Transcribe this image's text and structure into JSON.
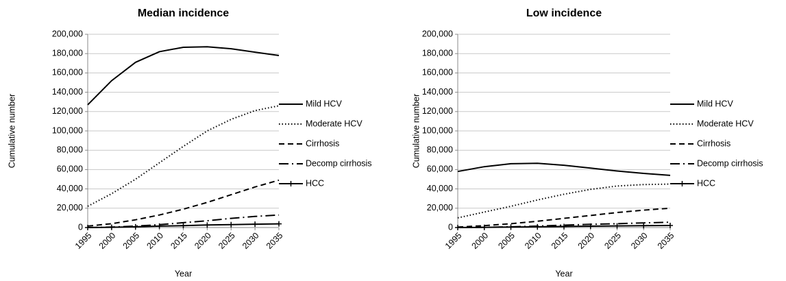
{
  "chart_data": [
    {
      "type": "line",
      "title": "Median incidence",
      "x_label": "Year",
      "y_label": "Cumulative number",
      "x": [
        1995,
        2000,
        2005,
        2010,
        2015,
        2020,
        2025,
        2030,
        2035
      ],
      "xlim": [
        1995,
        2035
      ],
      "xticks": [
        1995,
        2000,
        2005,
        2010,
        2015,
        2020,
        2025,
        2030,
        2035
      ],
      "ylim": [
        0,
        200000
      ],
      "yticks": [
        0,
        {
          "value": 20000,
          "label": "20,000"
        },
        {
          "value": 40000,
          "label": "40,000"
        },
        {
          "value": 60000,
          "label": "60,000"
        },
        {
          "value": 80000,
          "label": "80,000"
        },
        {
          "value": 100000,
          "label": "100,000"
        },
        {
          "value": 120000,
          "label": "120,000"
        },
        {
          "value": 140000,
          "label": "140,000"
        },
        {
          "value": 160000,
          "label": "160,000"
        },
        {
          "value": 180000,
          "label": "180,000"
        },
        {
          "value": 200000,
          "label": "200,000"
        }
      ],
      "grid": true,
      "legend": "right",
      "series": [
        {
          "name": "Mild HCV",
          "color": "#000000",
          "dash": "solid",
          "values": [
            127000,
            152000,
            171000,
            182000,
            186500,
            187000,
            185000,
            181500,
            178000
          ]
        },
        {
          "name": "Moderate HCV",
          "color": "#000000",
          "dash": "dotted",
          "values": [
            22000,
            35000,
            50000,
            67000,
            84000,
            100000,
            112000,
            121000,
            126000
          ]
        },
        {
          "name": "Cirrhosis",
          "color": "#000000",
          "dash": "dashed",
          "values": [
            1500,
            4000,
            8000,
            13000,
            19000,
            26000,
            34000,
            42000,
            49000
          ]
        },
        {
          "name": "Decomp cirrhosis",
          "color": "#000000",
          "dash": "dashdot",
          "values": [
            0,
            500,
            1500,
            3000,
            5000,
            7000,
            9500,
            11500,
            13000
          ]
        },
        {
          "name": "HCC",
          "color": "#000000",
          "dash": "solid",
          "marker": "plus",
          "values": [
            0,
            300,
            800,
            1500,
            2000,
            2600,
            3000,
            3500,
            3800
          ]
        }
      ]
    },
    {
      "type": "line",
      "title": "Low incidence",
      "x_label": "Year",
      "y_label": "Cumulative number",
      "x": [
        1995,
        2000,
        2005,
        2010,
        2015,
        2020,
        2025,
        2030,
        2035
      ],
      "xlim": [
        1995,
        2035
      ],
      "xticks": [
        1995,
        2000,
        2005,
        2010,
        2015,
        2020,
        2025,
        2030,
        2035
      ],
      "ylim": [
        0,
        200000
      ],
      "yticks": [
        0,
        {
          "value": 20000,
          "label": "20,000"
        },
        {
          "value": 40000,
          "label": "40,000"
        },
        {
          "value": 60000,
          "label": "60,000"
        },
        {
          "value": 80000,
          "label": "80,000"
        },
        {
          "value": 100000,
          "label": "100,000"
        },
        {
          "value": 120000,
          "label": "120,000"
        },
        {
          "value": 140000,
          "label": "140,000"
        },
        {
          "value": 160000,
          "label": "160,000"
        },
        {
          "value": 180000,
          "label": "180,000"
        },
        {
          "value": 200000,
          "label": "200,000"
        }
      ],
      "grid": true,
      "legend": "right",
      "series": [
        {
          "name": "Mild HCV",
          "color": "#000000",
          "dash": "solid",
          "values": [
            58000,
            63000,
            66000,
            66500,
            64500,
            61500,
            58500,
            56000,
            54000
          ]
        },
        {
          "name": "Moderate HCV",
          "color": "#000000",
          "dash": "dotted",
          "values": [
            10000,
            16000,
            22000,
            28500,
            34500,
            39500,
            43000,
            44500,
            45000
          ]
        },
        {
          "name": "Cirrhosis",
          "color": "#000000",
          "dash": "dashed",
          "values": [
            500,
            2000,
            4000,
            6500,
            9500,
            12500,
            15500,
            18000,
            20000
          ]
        },
        {
          "name": "Decomp cirrhosis",
          "color": "#000000",
          "dash": "dashdot",
          "values": [
            0,
            300,
            800,
            1500,
            2500,
            3300,
            4000,
            4800,
            5500
          ]
        },
        {
          "name": "HCC",
          "color": "#000000",
          "dash": "solid",
          "marker": "plus",
          "values": [
            0,
            200,
            500,
            800,
            1100,
            1400,
            1700,
            1900,
            2100
          ]
        }
      ]
    }
  ]
}
